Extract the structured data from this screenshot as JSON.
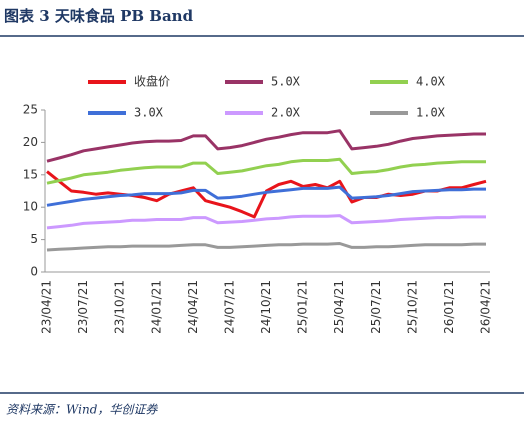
{
  "chart_data": {
    "type": "line",
    "title": "图表 3  天味食品 PB Band",
    "source": "资料来源：Wind，华创证券",
    "categories": [
      "23/04/21",
      null,
      null,
      "23/07/21",
      null,
      null,
      "23/10/21",
      null,
      null,
      "24/01/21",
      null,
      null,
      "24/04/21",
      null,
      null,
      "24/07/21",
      null,
      null,
      "24/10/21",
      null,
      null,
      "25/01/21",
      null,
      null,
      "25/04/21",
      null,
      null,
      "25/07/21",
      null,
      null,
      "25/10/21",
      null,
      null,
      "26/01/21",
      null,
      null,
      "26/04/21"
    ],
    "ylim": [
      0,
      25
    ],
    "yticks": [
      0,
      5,
      10,
      15,
      20,
      25
    ],
    "legend": "top",
    "series": [
      {
        "name": "收盘价",
        "color": "#e8141b",
        "values": [
          15.5,
          14.0,
          12.5,
          12.3,
          12.0,
          12.2,
          12.0,
          11.8,
          11.5,
          11.0,
          12.0,
          12.5,
          13.0,
          11.0,
          10.5,
          10.0,
          9.3,
          8.5,
          12.5,
          13.5,
          14.0,
          13.2,
          13.5,
          13.0,
          14.0,
          10.8,
          11.5,
          11.5,
          12.0,
          11.8,
          12.0,
          12.5,
          12.5,
          13.0,
          13.0,
          13.5,
          14.0
        ]
      },
      {
        "name": "5.0X",
        "color": "#993366",
        "values": [
          17.1,
          17.6,
          18.1,
          18.7,
          19.0,
          19.3,
          19.6,
          19.9,
          20.1,
          20.2,
          20.2,
          20.3,
          21.0,
          21.0,
          19.0,
          19.2,
          19.5,
          20.0,
          20.5,
          20.8,
          21.2,
          21.5,
          21.5,
          21.5,
          21.8,
          19.0,
          19.2,
          19.4,
          19.7,
          20.2,
          20.6,
          20.8,
          21.0,
          21.1,
          21.2,
          21.3,
          21.3
        ]
      },
      {
        "name": "4.0X",
        "color": "#92d050",
        "values": [
          13.7,
          14.1,
          14.5,
          15.0,
          15.2,
          15.4,
          15.7,
          15.9,
          16.1,
          16.2,
          16.2,
          16.2,
          16.8,
          16.8,
          15.2,
          15.4,
          15.6,
          16.0,
          16.4,
          16.6,
          17.0,
          17.2,
          17.2,
          17.2,
          17.4,
          15.2,
          15.4,
          15.5,
          15.8,
          16.2,
          16.5,
          16.6,
          16.8,
          16.9,
          17.0,
          17.0,
          17.0
        ]
      },
      {
        "name": "3.0X",
        "color": "#3f6fd8",
        "values": [
          10.3,
          10.6,
          10.9,
          11.2,
          11.4,
          11.6,
          11.8,
          11.9,
          12.1,
          12.1,
          12.1,
          12.2,
          12.6,
          12.6,
          11.4,
          11.5,
          11.7,
          12.0,
          12.3,
          12.5,
          12.7,
          12.9,
          12.9,
          12.9,
          13.1,
          11.4,
          11.5,
          11.6,
          11.8,
          12.1,
          12.4,
          12.5,
          12.6,
          12.7,
          12.7,
          12.8,
          12.8
        ]
      },
      {
        "name": "2.0X",
        "color": "#cc99ff",
        "values": [
          6.8,
          7.0,
          7.2,
          7.5,
          7.6,
          7.7,
          7.8,
          8.0,
          8.0,
          8.1,
          8.1,
          8.1,
          8.4,
          8.4,
          7.6,
          7.7,
          7.8,
          8.0,
          8.2,
          8.3,
          8.5,
          8.6,
          8.6,
          8.6,
          8.7,
          7.6,
          7.7,
          7.8,
          7.9,
          8.1,
          8.2,
          8.3,
          8.4,
          8.4,
          8.5,
          8.5,
          8.5
        ]
      },
      {
        "name": "1.0X",
        "color": "#999999",
        "values": [
          3.4,
          3.5,
          3.6,
          3.7,
          3.8,
          3.9,
          3.9,
          4.0,
          4.0,
          4.0,
          4.0,
          4.1,
          4.2,
          4.2,
          3.8,
          3.8,
          3.9,
          4.0,
          4.1,
          4.2,
          4.2,
          4.3,
          4.3,
          4.3,
          4.4,
          3.8,
          3.8,
          3.9,
          3.9,
          4.0,
          4.1,
          4.2,
          4.2,
          4.2,
          4.2,
          4.3,
          4.3
        ]
      }
    ]
  }
}
